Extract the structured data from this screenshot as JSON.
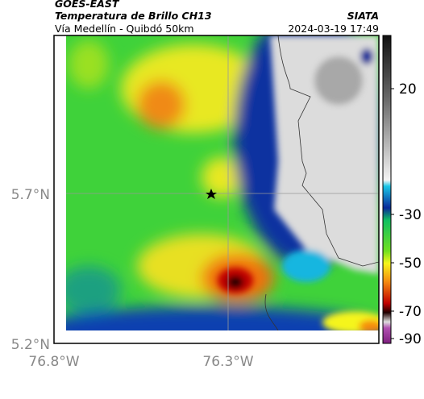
{
  "header": {
    "source": "GOES-EAST",
    "product": "Temperatura de Brillo CH13",
    "route": "Vía Medellín - Quibdó 50km",
    "agency": "SIATA",
    "timestamp": "2024-03-19 17:49"
  },
  "map": {
    "lat_labels": [
      "5.7°N",
      "5.2°N"
    ],
    "lon_labels": [
      "76.8°W",
      "76.3°W"
    ]
  },
  "colorbar": {
    "labels": [
      "20",
      "-30",
      "-50",
      "-70",
      "-90"
    ]
  }
}
